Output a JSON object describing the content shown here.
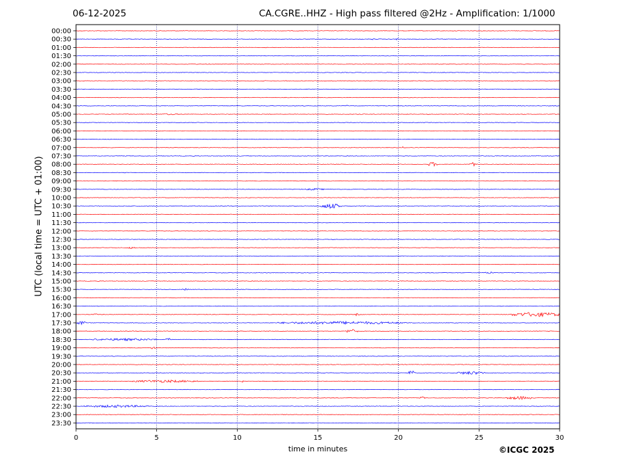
{
  "header": {
    "date": "06-12-2025",
    "station_title": "CA.CGRE..HHZ - High pass filtered @2Hz - Amplification: 1/1000"
  },
  "footer": {
    "copyright": "©ICGC 2025"
  },
  "chart_data": {
    "type": "line",
    "title": "CA.CGRE..HHZ - High pass filtered @2Hz - Amplification: 1/1000",
    "xlabel": "time in minutes",
    "ylabel": "UTC (local time = UTC + 01:00)",
    "xlim": [
      0,
      30
    ],
    "x_ticks": [
      0,
      5,
      10,
      15,
      20,
      25,
      30
    ],
    "vertical_grid": [
      5,
      10,
      15,
      20,
      25
    ],
    "grid": "dotted vertical",
    "rows": [
      "00:00",
      "00:30",
      "01:00",
      "01:30",
      "02:00",
      "02:30",
      "03:00",
      "03:30",
      "04:00",
      "04:30",
      "05:00",
      "05:30",
      "06:00",
      "06:30",
      "07:00",
      "07:30",
      "08:00",
      "08:30",
      "09:00",
      "09:30",
      "10:00",
      "10:30",
      "11:00",
      "11:30",
      "12:00",
      "12:30",
      "13:00",
      "13:30",
      "14:00",
      "14:30",
      "15:00",
      "15:30",
      "16:00",
      "16:30",
      "17:00",
      "17:30",
      "18:00",
      "18:30",
      "19:00",
      "19:30",
      "20:00",
      "20:30",
      "21:00",
      "21:30",
      "22:00",
      "22:30",
      "23:00",
      "23:30"
    ],
    "row_colors": [
      "#ff0000",
      "#0000ff"
    ],
    "events": [
      {
        "row": "00:30",
        "x": 18.4,
        "width": 0.2,
        "amp": 1.5
      },
      {
        "row": "00:30",
        "x": 19.9,
        "width": 0.2,
        "amp": 1.5
      },
      {
        "row": "04:30",
        "x": 16.8,
        "width": 0.1,
        "amp": 2
      },
      {
        "row": "05:00",
        "x": 5.8,
        "width": 1.2,
        "amp": 1.2
      },
      {
        "row": "07:00",
        "x": 20.3,
        "width": 0.1,
        "amp": 2.5
      },
      {
        "row": "08:00",
        "x": 22.1,
        "width": 0.6,
        "amp": 3.5
      },
      {
        "row": "08:00",
        "x": 24.6,
        "width": 0.4,
        "amp": 3
      },
      {
        "row": "09:30",
        "x": 14.8,
        "width": 1.2,
        "amp": 1.5
      },
      {
        "row": "10:30",
        "x": 15.8,
        "width": 1.3,
        "amp": 4
      },
      {
        "row": "13:00",
        "x": 3.4,
        "width": 0.6,
        "amp": 1.5
      },
      {
        "row": "14:30",
        "x": 25.7,
        "width": 0.6,
        "amp": 1.8
      },
      {
        "row": "15:30",
        "x": 6.8,
        "width": 0.4,
        "amp": 1.5
      },
      {
        "row": "17:00",
        "x": 1.2,
        "width": 0.3,
        "amp": 1.5
      },
      {
        "row": "17:00",
        "x": 17.4,
        "width": 0.3,
        "amp": 1.8
      },
      {
        "row": "17:00",
        "x": 28.5,
        "width": 3.1,
        "amp": 3.5
      },
      {
        "row": "17:30",
        "x": 0.3,
        "width": 0.6,
        "amp": 3
      },
      {
        "row": "17:30",
        "x": 16.5,
        "width": 8.0,
        "amp": 2.2
      },
      {
        "row": "18:00",
        "x": 17.1,
        "width": 0.8,
        "amp": 3
      },
      {
        "row": "18:30",
        "x": 3.0,
        "width": 4.0,
        "amp": 1.8
      },
      {
        "row": "18:30",
        "x": 5.7,
        "width": 0.3,
        "amp": 3
      },
      {
        "row": "19:00",
        "x": 4.8,
        "width": 0.4,
        "amp": 2
      },
      {
        "row": "20:30",
        "x": 20.8,
        "width": 0.4,
        "amp": 4
      },
      {
        "row": "20:30",
        "x": 24.5,
        "width": 1.8,
        "amp": 2.5
      },
      {
        "row": "21:00",
        "x": 5.5,
        "width": 4.2,
        "amp": 2
      },
      {
        "row": "21:00",
        "x": 10.3,
        "width": 0.2,
        "amp": 2.5
      },
      {
        "row": "22:00",
        "x": 21.5,
        "width": 0.3,
        "amp": 2
      },
      {
        "row": "22:00",
        "x": 27.5,
        "width": 1.6,
        "amp": 2.5
      },
      {
        "row": "22:30",
        "x": 2.5,
        "width": 4.0,
        "amp": 2
      }
    ]
  }
}
